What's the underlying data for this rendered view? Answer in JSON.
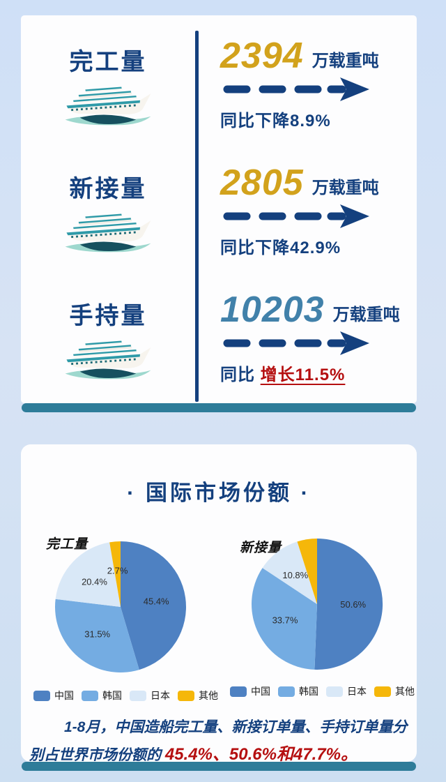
{
  "colors": {
    "navy_text": "#14407e",
    "gold_value": "#d2a21c",
    "steel_value": "#4181aa",
    "red_highlight": "#b50f10",
    "teal_bar": "#2e7c99",
    "page_background": "#d4e1f4",
    "card_background": "#fdfdfe",
    "china_blue": "#4e81c2",
    "korea_blue": "#74ace2",
    "japan_blue": "#d9e8f7",
    "other_gold": "#f5b70a"
  },
  "stats_card": {
    "rows": [
      {
        "label": "完工量",
        "value": "2394",
        "unit": "万载重吨",
        "change_plain": "同比下降8.9%",
        "change_highlight": ""
      },
      {
        "label": "新接量",
        "value": "2805",
        "unit": "万载重吨",
        "change_plain": "同比下降42.9%",
        "change_highlight": ""
      },
      {
        "label": "手持量",
        "value": "10203",
        "unit": "万载重吨",
        "change_plain": "同比 ",
        "change_highlight": "增长11.5%"
      }
    ]
  },
  "market_card": {
    "title": "· 国际市场份额 ·",
    "legend": [
      "中国",
      "韩国",
      "日本",
      "其他"
    ],
    "footnote_plain": "1-8月，中国造船完工量、新接订单量、手持订单量分别占世界市场份额的 ",
    "footnote_highlight": "45.4%、50.6%和47.7%。"
  },
  "chart_data": [
    {
      "type": "pie",
      "title": "完工量",
      "labels": [
        "中国",
        "韩国",
        "日本",
        "其他"
      ],
      "values": [
        45.4,
        31.5,
        20.4,
        2.7
      ],
      "display_labels": [
        "45.4%",
        "31.5%",
        "20.4%",
        "2.7%"
      ],
      "colors": [
        "#4e81c2",
        "#74ace2",
        "#d9e8f7",
        "#f5b70a"
      ],
      "start_angle": 0,
      "clockwise": true,
      "legend_position": "bottom"
    },
    {
      "type": "pie",
      "title": "新接量",
      "labels": [
        "中国",
        "韩国",
        "日本",
        "其他"
      ],
      "values": [
        50.6,
        33.7,
        10.8,
        4.9
      ],
      "display_labels": [
        "50.6%",
        "33.7%",
        "10.8%",
        ""
      ],
      "colors": [
        "#4e81c2",
        "#74ace2",
        "#d9e8f7",
        "#f5b70a"
      ],
      "start_angle": 0,
      "clockwise": true,
      "legend_position": "bottom"
    }
  ]
}
